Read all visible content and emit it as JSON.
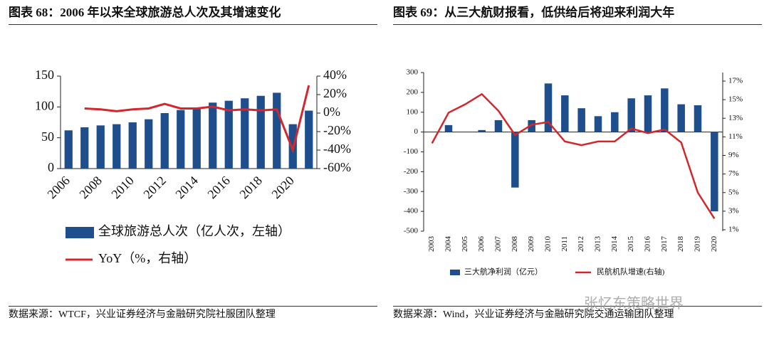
{
  "chart_data": [
    {
      "type": "combo",
      "title": "图表 68：2006 年以来全球旅游总人次及其增速变化",
      "source": "数据来源：WTCF，兴业证券经济与金融研究院社服团队整理",
      "categories": [
        "2006",
        null,
        "2008",
        null,
        "2010",
        null,
        "2012",
        null,
        "2014",
        null,
        "2016",
        null,
        "2018",
        null,
        "2020",
        null
      ],
      "series": [
        {
          "name": "全球旅游总人次（亿人次，左轴）",
          "color": "#1f4e8c",
          "type": "bar",
          "values": [
            62,
            67,
            70,
            72,
            75,
            80,
            90,
            95,
            98,
            107,
            110,
            114,
            118,
            123,
            72,
            94
          ]
        },
        {
          "name": "YoY（%，右轴）",
          "color": "#d4272d",
          "type": "line",
          "axis": "y2",
          "values": [
            null,
            5,
            4,
            2,
            4,
            5,
            10,
            5,
            5,
            7,
            3,
            4,
            3,
            4,
            -40,
            30
          ]
        }
      ],
      "ylim": [
        0,
        150
      ],
      "yticks": [
        0,
        50,
        100,
        150
      ],
      "y2lim": [
        -60,
        40
      ],
      "y2ticks": [
        {
          "value": -60,
          "label": "-60%"
        },
        {
          "value": -40,
          "label": "-40%"
        },
        {
          "value": -20,
          "label": "-20%"
        },
        {
          "value": 0,
          "label": "0%"
        },
        {
          "value": 20,
          "label": "20%"
        },
        {
          "value": 40,
          "label": "40%"
        }
      ]
    },
    {
      "type": "combo",
      "title": "图表 69：从三大航财报看，低供给后将迎来利润大年",
      "source": "数据来源：Wind，兴业证券经济与金融研究院交通运输团队整理",
      "categories": [
        "2003",
        "2004",
        "2005",
        "2006",
        "2007",
        "2008",
        "2009",
        "2010",
        "2011",
        "2012",
        "2013",
        "2014",
        "2015",
        "2016",
        "2017",
        "2018",
        "2019",
        "2020"
      ],
      "series": [
        {
          "name": "三大航净利润（亿元）",
          "color": "#1f4e8c",
          "type": "bar",
          "values": [
            null,
            35,
            null,
            10,
            60,
            -280,
            60,
            245,
            185,
            120,
            80,
            100,
            170,
            185,
            220,
            140,
            135,
            -400
          ]
        },
        {
          "name": "民航机队增速(右轴)",
          "color": "#d4272d",
          "type": "line",
          "axis": "y2",
          "values": [
            10.3,
            13.6,
            14.5,
            15.6,
            13.8,
            11.2,
            12.3,
            12.6,
            10.5,
            10.1,
            10.5,
            10.5,
            11.9,
            11.4,
            11.8,
            10.4,
            5.0,
            2.2
          ]
        }
      ],
      "ylim": [
        -500,
        300
      ],
      "yticks": [
        -500,
        -400,
        -300,
        -200,
        -100,
        0,
        100,
        200,
        300
      ],
      "y2lim": [
        1,
        17
      ],
      "y2ticks": [
        {
          "value": 1,
          "label": "1%"
        },
        {
          "value": 3,
          "label": "3%"
        },
        {
          "value": 5,
          "label": "5%"
        },
        {
          "value": 7,
          "label": "7%"
        },
        {
          "value": 9,
          "label": "9%"
        },
        {
          "value": 11,
          "label": "11%"
        },
        {
          "value": 13,
          "label": "13%"
        },
        {
          "value": 15,
          "label": "15%"
        },
        {
          "value": 17,
          "label": "17%"
        }
      ]
    }
  ],
  "watermark": "张忆东策略世界"
}
